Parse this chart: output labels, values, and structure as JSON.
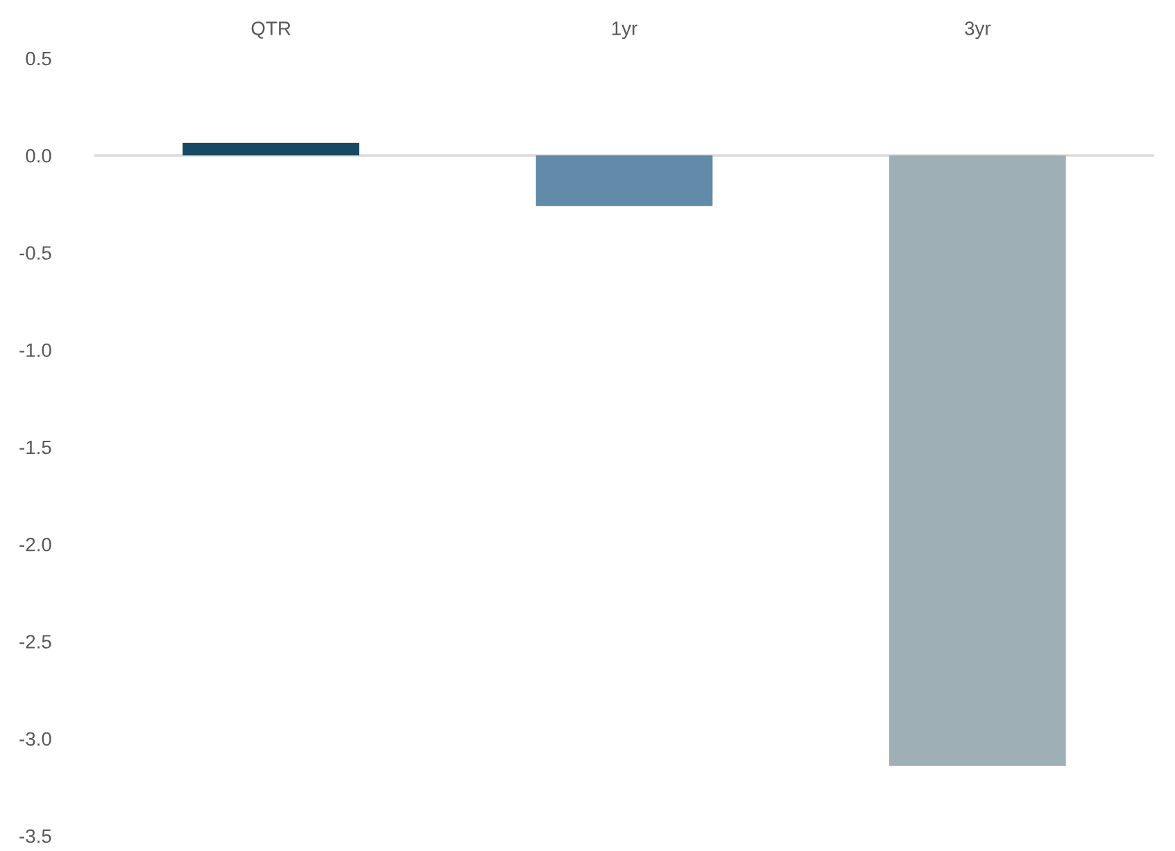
{
  "chart_data": {
    "type": "bar",
    "categories": [
      "QTR",
      "1yr",
      "3yr"
    ],
    "values": [
      0.065,
      -0.26,
      -3.14
    ],
    "colors": [
      "#164a63",
      "#618ba8",
      "#9eafb5"
    ],
    "ylim": [
      -3.5,
      0.5
    ],
    "yticks": [
      {
        "value": -3.5,
        "label": "-3.5"
      },
      {
        "value": -3.0,
        "label": "-3.0"
      },
      {
        "value": -2.5,
        "label": "-2.5"
      },
      {
        "value": -2.0,
        "label": "-2.0"
      },
      {
        "value": -1.5,
        "label": "-1.5"
      },
      {
        "value": -1.0,
        "label": "-1.0"
      },
      {
        "value": -0.5,
        "label": "-0.5"
      },
      {
        "value": 0.0,
        "label": "0.0"
      },
      {
        "value": 0.5,
        "label": "0.5"
      }
    ],
    "ref_lines": [
      {
        "axis": "y",
        "value": 0,
        "color": "#d9d9d9"
      }
    ],
    "grid": false,
    "legend": false
  }
}
